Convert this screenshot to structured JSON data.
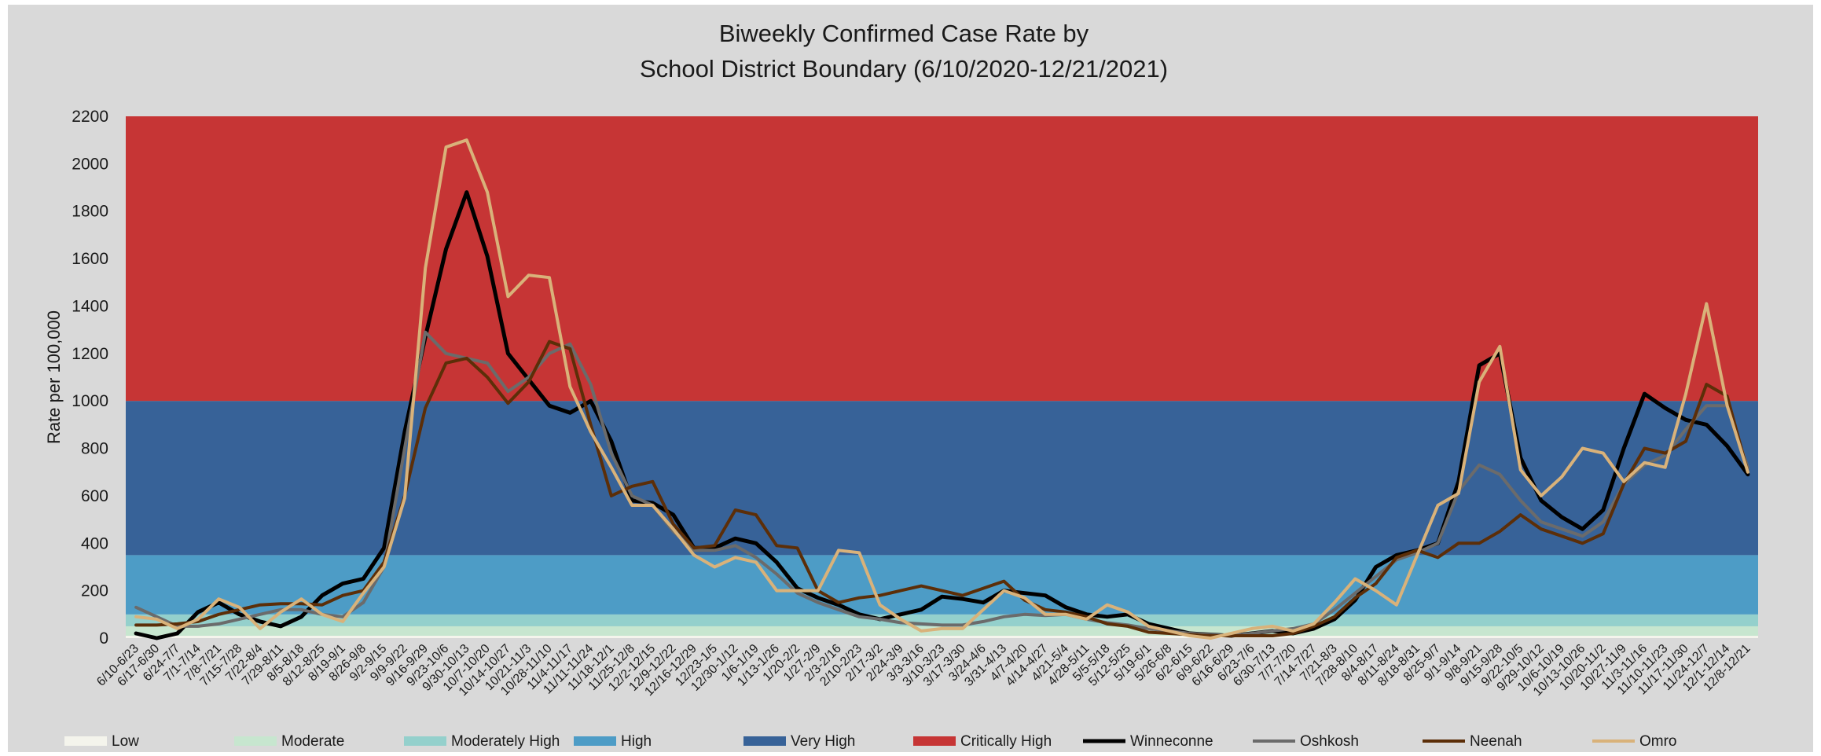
{
  "chart_data": {
    "type": "line",
    "title": "Biweekly Confirmed Case Rate by",
    "subtitle": "School District Boundary (6/10/2020-12/21/2021)",
    "xlabel": "",
    "ylabel": "Rate per 100,000",
    "ylim": [
      0,
      2200
    ],
    "yticks": [
      0,
      200,
      400,
      600,
      800,
      1000,
      1200,
      1400,
      1600,
      1800,
      2000,
      2200
    ],
    "grid": false,
    "legend_position": "bottom",
    "categories": [
      "6/10-6/23",
      "6/17-6/30",
      "6/24-7/7",
      "7/1-7/14",
      "7/8-7/21",
      "7/15-7/28",
      "7/22-8/4",
      "7/29-8/11",
      "8/5-8/18",
      "8/12-8/25",
      "8/19-9/1",
      "8/26-9/8",
      "9/2-9/15",
      "9/9-9/22",
      "9/16-9/29",
      "9/23-10/6",
      "9/30-10/13",
      "10/7-10/20",
      "10/14-10/27",
      "10/21-11/3",
      "10/28-11/10",
      "11/4-11/17",
      "11/11-11/24",
      "11/18-12/1",
      "11/25-12/8",
      "12/2-12/15",
      "12/9-12/22",
      "12/16-12/29",
      "12/23-1/5",
      "12/30-1/12",
      "1/6-1/19",
      "1/13-1/26",
      "1/20-2/2",
      "1/27-2/9",
      "2/3-2/16",
      "2/10-2/23",
      "2/17-3/2",
      "2/24-3/9",
      "3/3-3/16",
      "3/10-3/23",
      "3/17-3/30",
      "3/24-4/6",
      "3/31-4/13",
      "4/7-4/20",
      "4/14-4/27",
      "4/21-5/4",
      "4/28-5/11",
      "5/5-5/18",
      "5/12-5/25",
      "5/19-6/1",
      "5/26-6/8",
      "6/2-6/15",
      "6/9-6/22",
      "6/16-6/29",
      "6/23-7/6",
      "6/30-7/13",
      "7/7-7/20",
      "7/14-7/27",
      "7/21-8/3",
      "7/28-8/10",
      "8/4-8/17",
      "8/11-8/24",
      "8/18-8/31",
      "8/25-9/7",
      "9/1-9/14",
      "9/8-9/21",
      "9/15-9/28",
      "9/22-10/5",
      "9/29-10/12",
      "10/6-10/19",
      "10/13-10/26",
      "10/20-11/2",
      "10/27-11/9",
      "11/3-11/16",
      "11/10-11/23",
      "11/17-11/30",
      "11/24-12/7",
      "12/1-12/14",
      "12/8-12/21"
    ],
    "bands": [
      {
        "name": "Low",
        "from": 0,
        "to": 10,
        "color": "#f4f4ec"
      },
      {
        "name": "Moderate",
        "from": 10,
        "to": 50,
        "color": "#c7e6cf"
      },
      {
        "name": "Moderately High",
        "from": 50,
        "to": 100,
        "color": "#94d0cc"
      },
      {
        "name": "High",
        "from": 100,
        "to": 350,
        "color": "#4d9cc6"
      },
      {
        "name": "Very High",
        "from": 350,
        "to": 1000,
        "color": "#376298"
      },
      {
        "name": "Critically High",
        "from": 1000,
        "to": 2200,
        "color": "#c63535"
      }
    ],
    "series": [
      {
        "name": "Winneconne",
        "color": "#000000",
        "width": 5,
        "values": [
          20,
          0,
          20,
          110,
          150,
          100,
          70,
          50,
          90,
          180,
          230,
          250,
          380,
          870,
          1270,
          1640,
          1880,
          1610,
          1200,
          1090,
          980,
          950,
          1000,
          830,
          580,
          570,
          520,
          380,
          380,
          420,
          400,
          320,
          210,
          170,
          140,
          100,
          80,
          100,
          120,
          175,
          165,
          150,
          200,
          190,
          180,
          130,
          100,
          90,
          100,
          60,
          40,
          20,
          15,
          10,
          20,
          30,
          20,
          40,
          80,
          160,
          300,
          350,
          370,
          400,
          660,
          1150,
          1200,
          760,
          580,
          510,
          460,
          540,
          800,
          1030,
          970,
          920,
          900,
          810,
          690
        ]
      },
      {
        "name": "Oshkosh",
        "color": "#6b6b6b",
        "width": 4,
        "values": [
          130,
          90,
          50,
          50,
          60,
          80,
          100,
          120,
          120,
          100,
          90,
          150,
          300,
          800,
          1290,
          1200,
          1180,
          1160,
          1040,
          1100,
          1200,
          1240,
          1070,
          780,
          600,
          560,
          450,
          370,
          370,
          390,
          340,
          270,
          190,
          150,
          120,
          90,
          80,
          65,
          60,
          55,
          55,
          70,
          90,
          100,
          95,
          100,
          80,
          65,
          55,
          40,
          30,
          20,
          15,
          10,
          20,
          30,
          40,
          60,
          120,
          190,
          260,
          330,
          360,
          400,
          620,
          730,
          690,
          580,
          490,
          460,
          430,
          490,
          650,
          730,
          770,
          880,
          980,
          980,
          720
        ]
      },
      {
        "name": "Neenah",
        "color": "#5c2e08",
        "width": 4,
        "values": [
          55,
          55,
          60,
          70,
          100,
          120,
          140,
          145,
          145,
          140,
          180,
          200,
          320,
          600,
          970,
          1160,
          1180,
          1100,
          990,
          1080,
          1250,
          1220,
          900,
          600,
          640,
          660,
          480,
          380,
          390,
          540,
          520,
          390,
          380,
          200,
          150,
          170,
          180,
          200,
          220,
          200,
          180,
          210,
          240,
          160,
          120,
          110,
          90,
          60,
          50,
          25,
          20,
          15,
          10,
          10,
          10,
          10,
          20,
          50,
          90,
          170,
          230,
          340,
          370,
          340,
          400,
          400,
          450,
          520,
          460,
          430,
          400,
          440,
          650,
          800,
          780,
          830,
          1070,
          1020,
          700
        ]
      },
      {
        "name": "Omro",
        "color": "#d9b27a",
        "width": 4,
        "values": [
          90,
          80,
          40,
          80,
          165,
          130,
          40,
          110,
          165,
          100,
          70,
          190,
          300,
          590,
          1560,
          2070,
          2100,
          1880,
          1440,
          1530,
          1520,
          1060,
          870,
          720,
          560,
          560,
          460,
          350,
          300,
          340,
          320,
          200,
          200,
          200,
          370,
          360,
          140,
          80,
          30,
          40,
          40,
          120,
          200,
          170,
          100,
          100,
          80,
          140,
          110,
          50,
          30,
          10,
          0,
          20,
          40,
          50,
          30,
          60,
          150,
          250,
          200,
          140,
          350,
          560,
          610,
          1080,
          1230,
          710,
          600,
          680,
          800,
          780,
          660,
          740,
          720,
          1030,
          1410,
          980,
          700
        ]
      }
    ]
  }
}
